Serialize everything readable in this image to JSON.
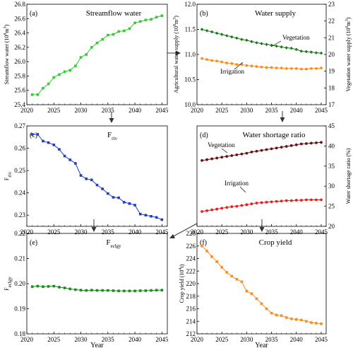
{
  "chart_data": [
    {
      "type": "line",
      "panel_letter": "(a)",
      "title": "Streamflow water",
      "ylabel": "Streamflow water (10",
      "ylabel_sup": "8",
      "ylabel_tail": "m",
      "ylabel_sup2": "3",
      "ylabel_end": ")",
      "xlabel": "",
      "xlim": [
        2020,
        2046
      ],
      "ylim": [
        25.4,
        26.8
      ],
      "xticks": [
        2020,
        2025,
        2030,
        2035,
        2040,
        2045
      ],
      "yticks": [
        "25.4",
        "25.6",
        "25.8",
        "26.0",
        "26.2",
        "26.4",
        "26.6",
        "26.8"
      ],
      "x": [
        2021,
        2022,
        2023,
        2024,
        2025,
        2026,
        2027,
        2028,
        2029,
        2030,
        2031,
        2032,
        2033,
        2034,
        2035,
        2036,
        2037,
        2038,
        2039,
        2040,
        2041,
        2042,
        2043,
        2044,
        2045
      ],
      "series": [
        {
          "color": "#33cc33",
          "marker": "square",
          "values": [
            25.54,
            25.54,
            25.63,
            25.69,
            25.78,
            25.82,
            25.86,
            25.88,
            25.94,
            26.06,
            26.1,
            26.2,
            26.26,
            26.31,
            26.37,
            26.38,
            26.42,
            26.43,
            26.46,
            26.54,
            26.56,
            26.58,
            26.59,
            26.62,
            26.64
          ]
        }
      ]
    },
    {
      "type": "line",
      "panel_letter": "(b)",
      "title": "Water supply",
      "ylabel": "Agricultural water supply (10",
      "ylabel_sup": "8",
      "ylabel_tail": "m",
      "ylabel_sup2": "3",
      "ylabel_end": ")",
      "y2label": "Vegetation water supply (10",
      "y2label_sup": "6",
      "y2label_tail": "m",
      "y2label_sup2": "3",
      "y2label_end": ")",
      "xlim": [
        2020,
        2046
      ],
      "ylim": [
        10.0,
        12.0
      ],
      "y2lim": [
        17,
        23
      ],
      "xticks": [
        2020,
        2025,
        2030,
        2035,
        2040,
        2045
      ],
      "yticks": [
        "10.0",
        "10.5",
        "11.0",
        "11.5",
        "12.0"
      ],
      "y2ticks": [
        "17",
        "18",
        "19",
        "20",
        "21",
        "22",
        "23"
      ],
      "x": [
        2021,
        2022,
        2023,
        2024,
        2025,
        2026,
        2027,
        2028,
        2029,
        2030,
        2031,
        2032,
        2033,
        2034,
        2035,
        2036,
        2037,
        2038,
        2039,
        2040,
        2041,
        2042,
        2043,
        2044,
        2045
      ],
      "annotations": [
        "Vegetation",
        "Irrigation"
      ],
      "series": [
        {
          "color": "#1a7a1a",
          "marker": "diamond",
          "axis": "right",
          "values": [
            21.5,
            21.42,
            21.35,
            21.27,
            21.2,
            21.12,
            21.05,
            20.98,
            20.9,
            20.85,
            20.77,
            20.7,
            20.65,
            20.6,
            20.55,
            20.5,
            20.45,
            20.4,
            20.37,
            20.3,
            20.2,
            20.17,
            20.14,
            20.1,
            20.08
          ]
        },
        {
          "color": "#ff8c1a",
          "marker": "circle",
          "axis": "left",
          "values": [
            10.92,
            10.9,
            10.88,
            10.87,
            10.85,
            10.83,
            10.82,
            10.8,
            10.8,
            10.78,
            10.77,
            10.76,
            10.75,
            10.74,
            10.74,
            10.73,
            10.73,
            10.72,
            10.72,
            10.72,
            10.71,
            10.71,
            10.72,
            10.72,
            10.73
          ]
        }
      ]
    },
    {
      "type": "line",
      "panel_letter": "(c)",
      "title": "F",
      "title_sub": "riv",
      "ylabel": "F",
      "ylabel_sub": "riv",
      "xlim": [
        2020,
        2046
      ],
      "ylim": [
        0.225,
        0.27
      ],
      "xticks": [
        2020,
        2025,
        2030,
        2035,
        2040,
        2045
      ],
      "yticks": [
        "0.23",
        "0.24",
        "0.25",
        "0.26",
        "0.27"
      ],
      "x": [
        2021,
        2022,
        2023,
        2024,
        2025,
        2026,
        2027,
        2028,
        2029,
        2030,
        2031,
        2032,
        2033,
        2034,
        2035,
        2036,
        2037,
        2038,
        2039,
        2040,
        2041,
        2042,
        2043,
        2044,
        2045
      ],
      "series": [
        {
          "color": "#1f3fbf",
          "marker": "square",
          "values": [
            0.2662,
            0.2662,
            0.2632,
            0.2625,
            0.2615,
            0.2595,
            0.2565,
            0.2548,
            0.2532,
            0.2478,
            0.2463,
            0.2458,
            0.2435,
            0.2418,
            0.2397,
            0.238,
            0.2378,
            0.2358,
            0.2352,
            0.2345,
            0.2305,
            0.23,
            0.2295,
            0.229,
            0.228
          ]
        }
      ]
    },
    {
      "type": "line",
      "panel_letter": "(d)",
      "title": "Water shortage ratio",
      "ylabel": "",
      "y2label": "Water shortage ratio (%)",
      "xlim": [
        2020,
        2046
      ],
      "y2lim": [
        20,
        45
      ],
      "xticks": [
        2020,
        2025,
        2030,
        2035,
        2040,
        2045
      ],
      "y2ticks": [
        "20",
        "25",
        "30",
        "35",
        "40",
        "45"
      ],
      "x": [
        2021,
        2022,
        2023,
        2024,
        2025,
        2026,
        2027,
        2028,
        2029,
        2030,
        2031,
        2032,
        2033,
        2034,
        2035,
        2036,
        2037,
        2038,
        2039,
        2040,
        2041,
        2042,
        2043,
        2044,
        2045
      ],
      "annotations": [
        "Vegetation",
        "Irrigation"
      ],
      "series": [
        {
          "color": "#6b1010",
          "marker": "circle",
          "axis": "right",
          "values": [
            36.4,
            36.6,
            36.8,
            37.0,
            37.2,
            37.4,
            37.6,
            37.8,
            38.0,
            38.2,
            38.5,
            38.7,
            38.9,
            39.1,
            39.3,
            39.5,
            39.7,
            39.9,
            40.1,
            40.3,
            40.5,
            40.6,
            40.7,
            40.8,
            40.9
          ]
        },
        {
          "color": "#e61e1e",
          "marker": "circle",
          "axis": "right",
          "values": [
            23.7,
            23.9,
            24.1,
            24.3,
            24.5,
            24.7,
            24.9,
            25.0,
            25.2,
            25.4,
            25.6,
            25.8,
            25.9,
            26.0,
            26.1,
            26.2,
            26.3,
            26.4,
            26.4,
            26.5,
            26.5,
            26.6,
            26.6,
            26.6,
            26.6
          ]
        }
      ]
    },
    {
      "type": "line",
      "panel_letter": "(e)",
      "title": "F",
      "title_sub": "eclgy",
      "ylabel": "F",
      "ylabel_sub": "eclgy",
      "xlabel": "Year",
      "xlim": [
        2020,
        2046
      ],
      "ylim": [
        0.18,
        0.22
      ],
      "xticks": [
        2020,
        2025,
        2030,
        2035,
        2040,
        2045
      ],
      "yticks": [
        "0.18",
        "0.19",
        "0.20",
        "0.21",
        "0.22"
      ],
      "x": [
        2021,
        2022,
        2023,
        2024,
        2025,
        2026,
        2027,
        2028,
        2029,
        2030,
        2031,
        2032,
        2033,
        2034,
        2035,
        2036,
        2037,
        2038,
        2039,
        2040,
        2041,
        2042,
        2043,
        2044,
        2045
      ],
      "series": [
        {
          "color": "#1f8a1f",
          "marker": "square",
          "values": [
            0.1988,
            0.199,
            0.1988,
            0.1989,
            0.199,
            0.1986,
            0.1983,
            0.1979,
            0.1976,
            0.1974,
            0.1973,
            0.1974,
            0.1973,
            0.1973,
            0.1973,
            0.1972,
            0.1971,
            0.1971,
            0.1971,
            0.1971,
            0.1972,
            0.1972,
            0.1973,
            0.1974,
            0.1974
          ]
        }
      ]
    },
    {
      "type": "line",
      "panel_letter": "(f)",
      "title": "Crop yield",
      "ylabel": "Crop yield (10",
      "ylabel_sup": "4",
      "ylabel_tail": "t)",
      "xlabel": "Year",
      "xlim": [
        2020,
        2046
      ],
      "ylim": [
        212,
        228
      ],
      "xticks": [
        2020,
        2025,
        2030,
        2035,
        2040,
        2045
      ],
      "yticks": [
        "212",
        "214",
        "216",
        "218",
        "220",
        "222",
        "224",
        "226",
        "228"
      ],
      "x": [
        2021,
        2022,
        2023,
        2024,
        2025,
        2026,
        2027,
        2028,
        2029,
        2030,
        2031,
        2032,
        2033,
        2034,
        2035,
        2036,
        2037,
        2038,
        2039,
        2040,
        2041,
        2042,
        2043,
        2044,
        2045
      ],
      "series": [
        {
          "color": "#ff8c1a",
          "marker": "square",
          "values": [
            226.0,
            225.2,
            224.3,
            223.5,
            222.6,
            221.8,
            221.2,
            220.7,
            220.3,
            218.8,
            218.4,
            217.6,
            216.8,
            216.0,
            215.3,
            215.0,
            214.9,
            214.6,
            214.4,
            214.3,
            214.2,
            214.0,
            213.8,
            213.7,
            213.6
          ]
        }
      ]
    }
  ]
}
